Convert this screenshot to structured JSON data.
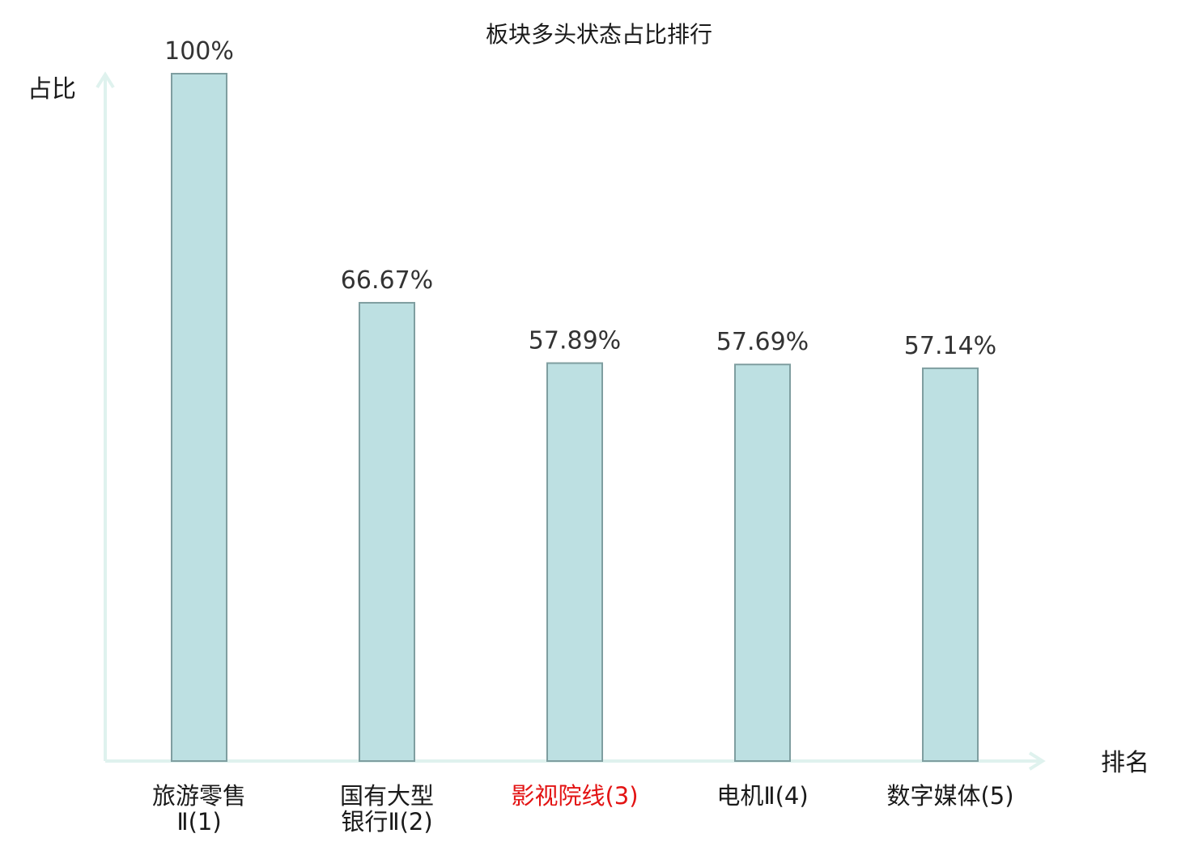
{
  "chart_data": {
    "type": "bar",
    "title": "板块多头状态占比排行",
    "ylabel": "占比",
    "xlabel": "排名",
    "categories": [
      [
        "旅游零售",
        "Ⅱ(1)"
      ],
      [
        "国有大型",
        "银行Ⅱ(2)"
      ],
      [
        "影视院线(3)"
      ],
      [
        "电机Ⅱ(4)"
      ],
      [
        "数字媒体(5)"
      ]
    ],
    "values": [
      100,
      66.67,
      57.89,
      57.69,
      57.14
    ],
    "value_labels": [
      "100%",
      "66.67%",
      "57.89%",
      "57.69%",
      "57.14%"
    ],
    "highlight_index": 2,
    "ylim": [
      0,
      100
    ],
    "grid": false,
    "legend": "none",
    "colors": {
      "bar_fill": "#bde0e2",
      "bar_stroke": "#7f9ea0",
      "axis": "#dff2ee",
      "text": "#1a1a1a",
      "value_text": "#333333",
      "highlight": "#e31414"
    }
  }
}
